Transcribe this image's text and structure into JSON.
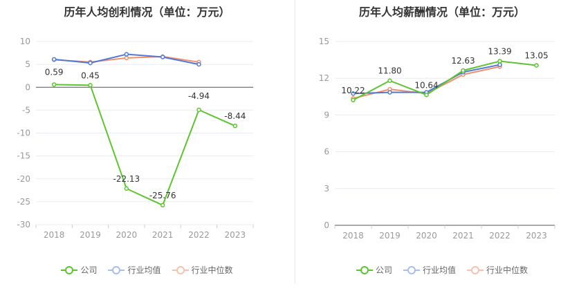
{
  "chart_data": [
    {
      "type": "line",
      "title": "历年人均创利情况（单位：万元）",
      "categories": [
        "2018",
        "2019",
        "2020",
        "2021",
        "2022",
        "2023"
      ],
      "ylim": [
        -30,
        10
      ],
      "yticks": [
        10,
        5,
        0,
        -5,
        -10,
        -15,
        -20,
        -25,
        -30
      ],
      "grid": true,
      "legend_position": "bottom",
      "series": [
        {
          "name": "公司",
          "color": "#5cc42f",
          "values": [
            0.59,
            0.45,
            -22.13,
            -25.76,
            -4.94,
            -8.44
          ],
          "labels": [
            "0.59",
            "0.45",
            "-22.13",
            "-25.76",
            "-4.94",
            "-8.44"
          ]
        },
        {
          "name": "行业均值",
          "color": "#4e79d8",
          "values": [
            6.1,
            5.3,
            7.2,
            6.6,
            5.0,
            null
          ],
          "labels": []
        },
        {
          "name": "行业中位数",
          "color": "#f0906c",
          "values": [
            6.0,
            5.5,
            6.4,
            6.7,
            5.5,
            null
          ],
          "labels": []
        }
      ]
    },
    {
      "type": "line",
      "title": "历年人均薪酬情况（单位：万元）",
      "categories": [
        "2018",
        "2019",
        "2020",
        "2021",
        "2022",
        "2023"
      ],
      "ylim": [
        0,
        15
      ],
      "yticks": [
        15,
        12,
        9,
        6,
        3,
        0
      ],
      "grid": true,
      "legend_position": "bottom",
      "series": [
        {
          "name": "公司",
          "color": "#5cc42f",
          "values": [
            10.22,
            11.8,
            10.64,
            12.63,
            13.39,
            13.05
          ],
          "labels": [
            "10.22",
            "11.80",
            "10.64",
            "12.63",
            "13.39",
            "13.05"
          ]
        },
        {
          "name": "行业均值",
          "color": "#4e79d8",
          "values": [
            10.75,
            10.85,
            10.85,
            12.5,
            13.1,
            null
          ],
          "labels": []
        },
        {
          "name": "行业中位数",
          "color": "#f0906c",
          "values": [
            10.35,
            11.1,
            10.75,
            12.3,
            12.95,
            null
          ],
          "labels": []
        }
      ]
    }
  ]
}
